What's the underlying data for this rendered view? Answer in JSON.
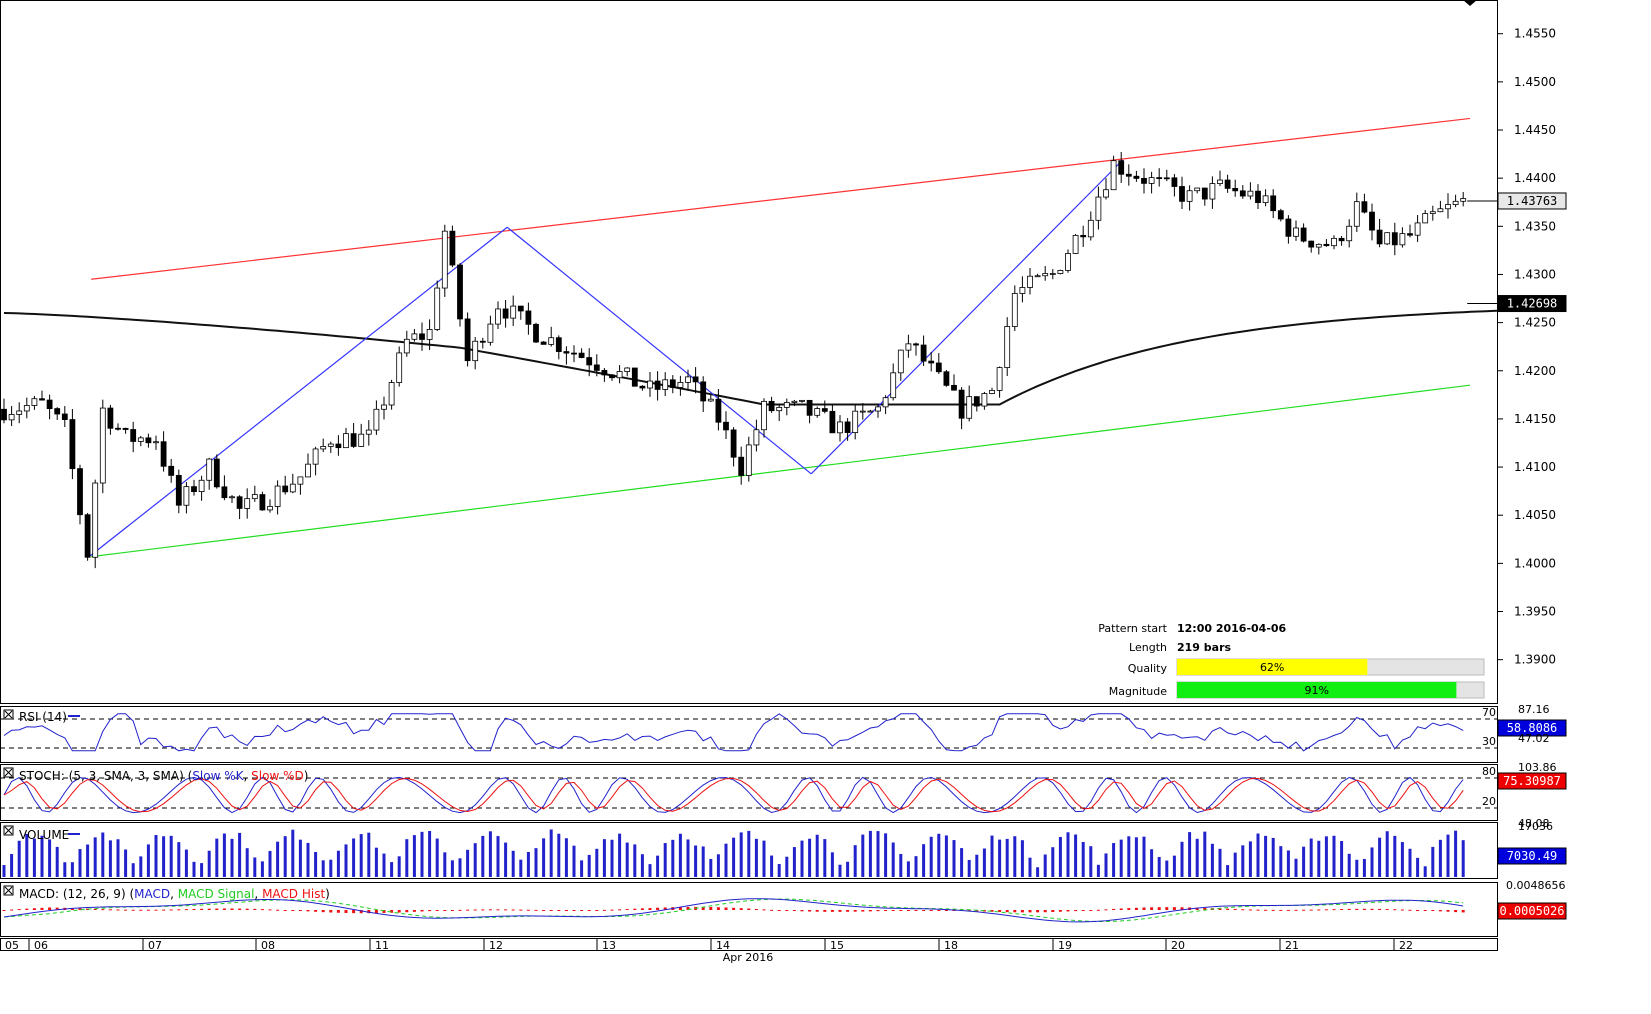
{
  "colors": {
    "up_candle": "#ffffff",
    "down_candle": "#000000",
    "resistance": "#ff3333",
    "support": "#22dd22",
    "pattern": "#3333ff",
    "ma": "#111111",
    "rsi": "#2222cc",
    "stoch_k": "#2222cc",
    "stoch_d": "#ee1111",
    "volume": "#2222cc",
    "macd": "#2222cc",
    "macd_signal": "#22cc22",
    "macd_hist": "#ee1111",
    "quality_bar": "#ffff00",
    "magnitude_bar": "#11ee11",
    "badge_blue": "#0000dd",
    "badge_black": "#000000",
    "badge_red": "#ee0000"
  },
  "chart_data": {
    "type": "candlestick",
    "price_axis": {
      "ticks": [
        "1.4550",
        "1.4500",
        "1.4450",
        "1.4400",
        "1.4350",
        "1.4300",
        "1.4250",
        "1.4200",
        "1.4150",
        "1.4100",
        "1.4050",
        "1.4000",
        "1.3950",
        "1.3900"
      ],
      "ylim": [
        1.3855,
        1.4585
      ]
    },
    "current_price": "1.43763",
    "ma_value": "1.42698",
    "x_axis": {
      "ticks": [
        "05",
        "06",
        "07",
        "08",
        "11",
        "12",
        "13",
        "14",
        "15",
        "18",
        "19",
        "20",
        "21",
        "22"
      ],
      "month_label": "Apr 2016"
    },
    "channel": {
      "resistance": [
        [
          2,
          1.4295
        ],
        [
          192,
          1.4462
        ]
      ],
      "support": [
        [
          2,
          1.4007
        ],
        [
          192,
          1.4185
        ]
      ]
    },
    "pattern_points": [
      [
        2,
        1.4007
      ],
      [
        57,
        1.4349
      ],
      [
        97,
        1.4093
      ],
      [
        138,
        1.4419
      ]
    ],
    "pattern_info": {
      "start_label": "Pattern start",
      "start_value": "12:00 2016-04-06",
      "length_label": "Length",
      "length_value": "219 bars",
      "quality_label": "Quality",
      "quality_text": "62%",
      "quality": 0.62,
      "magnitude_label": "Magnitude",
      "magnitude_text": "91%",
      "magnitude": 0.91
    },
    "rsi": {
      "label": "RSI (14)",
      "top_value": "87.16",
      "low_value": "47.02",
      "level_high": "70",
      "level_low": "30",
      "current": "58.8086"
    },
    "stoch": {
      "label_prefix": "STOCH: (5, 3, SMA, 3, SMA)",
      "k_name": "Slow %K",
      "d_name": "Slow %D",
      "top_value": "103.86",
      "low_value": "48.08",
      "level_high": "80",
      "level_low": "20",
      "current": "75.30987"
    },
    "volume": {
      "label": "VOLUME",
      "top_value": "17036",
      "current": "7030.49"
    },
    "macd": {
      "label_prefix": "MACD: (12, 26, 9)",
      "macd_name": "MACD",
      "signal_name": "MACD Signal",
      "hist_name": "MACD Hist",
      "top_value": "0.0048656",
      "current": "0.0005026"
    }
  }
}
